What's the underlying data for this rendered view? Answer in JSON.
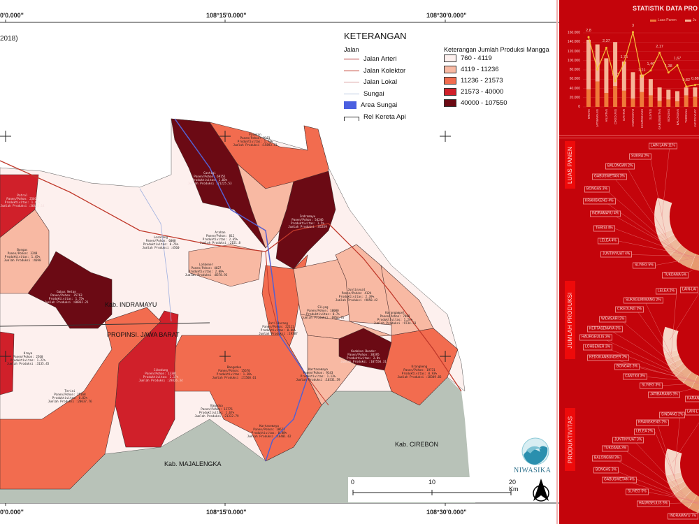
{
  "map": {
    "subtitle_fragment": "2018)",
    "coords_top": [
      "0'0.000\"",
      "108°15'0.000\"",
      "108°30'0.000\""
    ],
    "coords_bottom": [
      "0'0.000\"",
      "108°15'0.000\"",
      "108°30'0.000\""
    ],
    "regions": {
      "indramayu": "Kab. INDRAMAYU",
      "province": "PROPINSI. JAWA BARAT",
      "majalengka": "Kab. MAJALENGKA",
      "cirebon": "Kab. CIREBON"
    },
    "districts": [
      {
        "name": "Pasekan",
        "panen": "Panen/Pohon: 9181",
        "prod": "Produktivitas: 1.73%",
        "jumlah": "Jumlah Produksi :15893.31",
        "class": 3
      },
      {
        "name": "Cantigi",
        "panen": "Panen/Pohon: 69151",
        "prod": "Produktivitas: 1.03%",
        "jumlah": "Jumlah Produksi :71225.53",
        "class": 5
      },
      {
        "name": "Indramayu",
        "panen": "Panen/Pohon: 54246",
        "prod": "Produktivitas: 1.5%",
        "jumlah": "Jumlah Produksi :81359",
        "class": 5
      },
      {
        "name": "Arahan",
        "panen": "Panen/Pohon: 812",
        "prod": "Produktivitas: 2.65%",
        "jumlah": "Jumlah Produksi :2151.8",
        "class": 1
      },
      {
        "name": "Lohbener",
        "panen": "Panen/Pohon: 4027",
        "prod": "Produktivitas: 2.08%",
        "jumlah": "Jumlah Produksi :8378.93",
        "class": 2
      },
      {
        "name": "Patrol",
        "panen": "Panen/Pohon: 25017",
        "prod": "Produktivitas: 1.46%",
        "jumlah": "Jumlah Produksi :36484.14",
        "class": 4
      },
      {
        "name": "Bongas",
        "panen": "Panen/Pohon: 3248",
        "prod": "Produktivitas: 1.45%",
        "jumlah": "Jumlah Produksi :4690",
        "class": 2
      },
      {
        "name": "Gabus Wetan",
        "panen": "Panen/Pohon: 35763",
        "prod": "Produktivitas: 1.75%",
        "jumlah": "Jumlah Produksi :60932.21",
        "class": 5
      },
      {
        "name": "Sliyeg",
        "panen": "Panen/Pohon: 10000",
        "prod": "Produktivitas: 0.7%",
        "jumlah": "Jumlah Produksi :6954.76",
        "class": 2
      },
      {
        "name": "Juntinyuat",
        "panen": "Panen/Pohon: 4124",
        "prod": "Produktivitas: 2.39%",
        "jumlah": "Jumlah Produksi :9858.42",
        "class": 2
      },
      {
        "name": "Karangampel",
        "panen": "Panen/Pohon: 7888",
        "prod": "Produktivitas: 1.24%",
        "jumlah": "Jumlah Produksi :9734.33",
        "class": 2
      },
      {
        "name": "Kedokan Bunder",
        "panen": "Panen/Pohon: 38395",
        "prod": "Produktivitas: 2.8%",
        "jumlah": "Jumlah Produksi :107550.31",
        "class": 5
      },
      {
        "name": "Krangkeng",
        "panen": "Panen/Pohon: 19731",
        "prod": "Produktivitas: 0.93%",
        "jumlah": "Jumlah Produksi :18349.83",
        "class": 3
      },
      {
        "name": "Kartasemaya",
        "panen": "Panen/Pohon: 9143",
        "prod": "Produktivitas: 1.13%",
        "jumlah": "Jumlah Produksi :10331.59",
        "class": 2
      },
      {
        "name": "Bangodua",
        "panen": "Panen/Pohon: 15670",
        "prod": "Produktivitas: 1.38%",
        "jumlah": "Jumlah Produksi :21560.61",
        "class": 3
      },
      {
        "name": "Bagodua",
        "panen": "Panen/Pohon: 12776",
        "prod": "Produktivitas: 1.67%",
        "jumlah": "Jumlah Produksi :21332.79",
        "class": 3
      },
      {
        "name": "Kartasemaya",
        "panen": "Panen/Pohon: 18671",
        "prod": "Produktivitas: 0.88%",
        "jumlah": "Jumlah Produksi :16401.62",
        "class": 3
      },
      {
        "name": "Cikedung",
        "panen": "Panen/Pohon: 13301",
        "prod": "Produktivitas: 2.17%",
        "jumlah": "Jumlah Produksi :28826.34",
        "class": 4
      },
      {
        "name": "Terisi",
        "panen": "Panen/Pohon: 25168",
        "prod": "Produktivitas: 0.82%",
        "jumlah": "Jumlah Produksi :20637.76",
        "class": 3
      },
      {
        "name": "Kroya",
        "panen": "Panen/Pohon: 2560",
        "prod": "Produktivitas: 1.22%",
        "jumlah": "Jumlah Produksi :3135.45",
        "class": 1
      },
      {
        "name": "Jati Barang",
        "panen": "Panen/Pohon: 22111",
        "prod": "Produktivitas: 0.88%",
        "jumlah": "Jumlah Produksi :19387",
        "class": 3
      },
      {
        "name": "Losarang",
        "panen": "Panen/Pohon: 6000",
        "prod": "Produktivitas: 0.76%",
        "jumlah": "Jumlah Produksi :4560",
        "class": 1
      }
    ],
    "scale": {
      "labels": [
        "0",
        "10",
        "20 Km"
      ]
    },
    "logo_text": "NIWASIKA"
  },
  "legend": {
    "title": "KETERANGAN",
    "roads_title": "Jalan",
    "lines": [
      {
        "label": "Jalan Arteri",
        "color": "#b22a2a"
      },
      {
        "label": "Jalan Kolektor",
        "color": "#c0392b"
      },
      {
        "label": "Jalan Lokal",
        "color": "#d9a0a0"
      },
      {
        "label": "Sungai",
        "color": "#b8c8e0"
      },
      {
        "label": "Area Sungai",
        "color": "#4a5fe0"
      },
      {
        "label": "Rel Kereta Api",
        "color": "#333333"
      }
    ],
    "classes_title": "Keterangan Jumlah Produksi Mangga",
    "classes": [
      {
        "label": "760 - 4119",
        "color": "#fdf0ee"
      },
      {
        "label": "4119 - 11236",
        "color": "#f8b9a3"
      },
      {
        "label": "11236 - 21573",
        "color": "#f26c4f"
      },
      {
        "label": "21573 - 40000",
        "color": "#d0202a"
      },
      {
        "label": "40000 - 107550",
        "color": "#6b0a14"
      }
    ]
  },
  "panel": {
    "background": "#c4040b",
    "chart_data": {
      "type": "bar",
      "title": "STATISTIK DATA PRO",
      "legend": [
        "Luas Panen",
        "Ju"
      ],
      "categories": [
        "KROYA",
        "JATIBARANG",
        "ANJATAN",
        "CIKEDUNG",
        "GANTAR",
        "INDRAMAYU",
        "HAURGEULIS",
        "SLIYEG",
        "GABUSWETAN",
        "BONGAS",
        "BALONGAN",
        "TUKDANA",
        "JUNTINYUAT",
        "LELEA",
        "KRANGKENG"
      ],
      "yticks": [
        "0",
        "20.000",
        "40.000",
        "60.000",
        "80.000",
        "100.000",
        "120.000",
        "140.000",
        "160.000"
      ],
      "ylim": [
        0,
        160000
      ],
      "series": [
        {
          "name": "Luas Panen",
          "type": "bar",
          "color": "#ef7a3a",
          "values": [
            38000,
            55000,
            30000,
            45000,
            35000,
            18000,
            32000,
            25000,
            13000,
            16000,
            12000,
            25000,
            22000,
            18000,
            20000
          ]
        },
        {
          "name": "Ju",
          "type": "bar",
          "color": "#f6b497",
          "values": [
            107000,
            80000,
            75000,
            95000,
            63000,
            57000,
            38000,
            35000,
            29000,
            21000,
            22000,
            17000,
            20000,
            22000,
            21000
          ]
        },
        {
          "type": "line",
          "color": "#f7c23a",
          "values": [
            2.8,
            1.5,
            2.37,
            1.03,
            1.75,
            3,
            1.21,
            1.46,
            2.17,
            1.38,
            1.67,
            0.82,
            0.88,
            0.93,
            0.9
          ],
          "labels": [
            "2,8",
            "1,5",
            "2,37",
            "1,03",
            "1,75",
            "3",
            "1,21",
            "1,46",
            "2,17",
            "1,38",
            "1,67",
            "0,82",
            "0,88",
            "0,93",
            ""
          ]
        }
      ],
      "y2lim": [
        0,
        3
      ]
    },
    "donuts": [
      {
        "title": "LUAS PANEN",
        "slices": [
          {
            "label": "LAIN LAIN 11%",
            "pct": 11
          },
          {
            "label": "SUKRA 2%",
            "pct": 2
          },
          {
            "label": "BALONGAN 2%",
            "pct": 2
          },
          {
            "label": "GABUSWETAN 3%",
            "pct": 3
          },
          {
            "label": "BONGAS 3%",
            "pct": 3
          },
          {
            "label": "KRANGKENG 4%",
            "pct": 4
          },
          {
            "label": "INDRAMAYU 4%",
            "pct": 4
          },
          {
            "label": "TERISI 4%",
            "pct": 4
          },
          {
            "label": "LELEA 4%",
            "pct": 4
          },
          {
            "label": "JUNTINYUAT 4%",
            "pct": 4
          },
          {
            "label": "SLIYEG 5%",
            "pct": 5
          },
          {
            "label": "TUKDANA 5%",
            "pct": 5
          }
        ]
      },
      {
        "title": "JUMLAH PRODUKSI",
        "slices": [
          {
            "label": "LAIN-LAI",
            "pct": 8
          },
          {
            "label": "LELEA 2%",
            "pct": 2
          },
          {
            "label": "SUKAGUMIWANG 2%",
            "pct": 2
          },
          {
            "label": "CIKEDUNG 2%",
            "pct": 2
          },
          {
            "label": "WIDASARI 2%",
            "pct": 2
          },
          {
            "label": "KERTASEMAYA 3%",
            "pct": 3
          },
          {
            "label": "HAURGEULIS 3%",
            "pct": 3
          },
          {
            "label": "LOHBENER 3%",
            "pct": 3
          },
          {
            "label": "KEDOKANBUNDER 3%",
            "pct": 3
          },
          {
            "label": "BONGAS 3%",
            "pct": 3
          },
          {
            "label": "CANTIGI 3%",
            "pct": 3
          },
          {
            "label": "SLIYEG 3%",
            "pct": 3
          },
          {
            "label": "JATIBARANG 3%",
            "pct": 3
          },
          {
            "label": "KARAN",
            "pct": 4
          }
        ]
      },
      {
        "title": "PRODUKTIVITAS",
        "slices": [
          {
            "label": "LAIN-L",
            "pct": 8
          },
          {
            "label": "SINDANG 2%",
            "pct": 2
          },
          {
            "label": "KRANGKENG 2%",
            "pct": 2
          },
          {
            "label": "LELEA 2%",
            "pct": 2
          },
          {
            "label": "JUNTINYUAT 3%",
            "pct": 3
          },
          {
            "label": "TUKDANA 3%",
            "pct": 3
          },
          {
            "label": "BALONGAN 3%",
            "pct": 3
          },
          {
            "label": "BONGAS 3%",
            "pct": 3
          },
          {
            "label": "GABUSWETAN 4%",
            "pct": 4
          },
          {
            "label": "SLIYEG 5%",
            "pct": 5
          },
          {
            "label": "HAURGEULIS 5%",
            "pct": 5
          },
          {
            "label": "INDRAMAYU 7%",
            "pct": 7
          }
        ]
      }
    ]
  }
}
